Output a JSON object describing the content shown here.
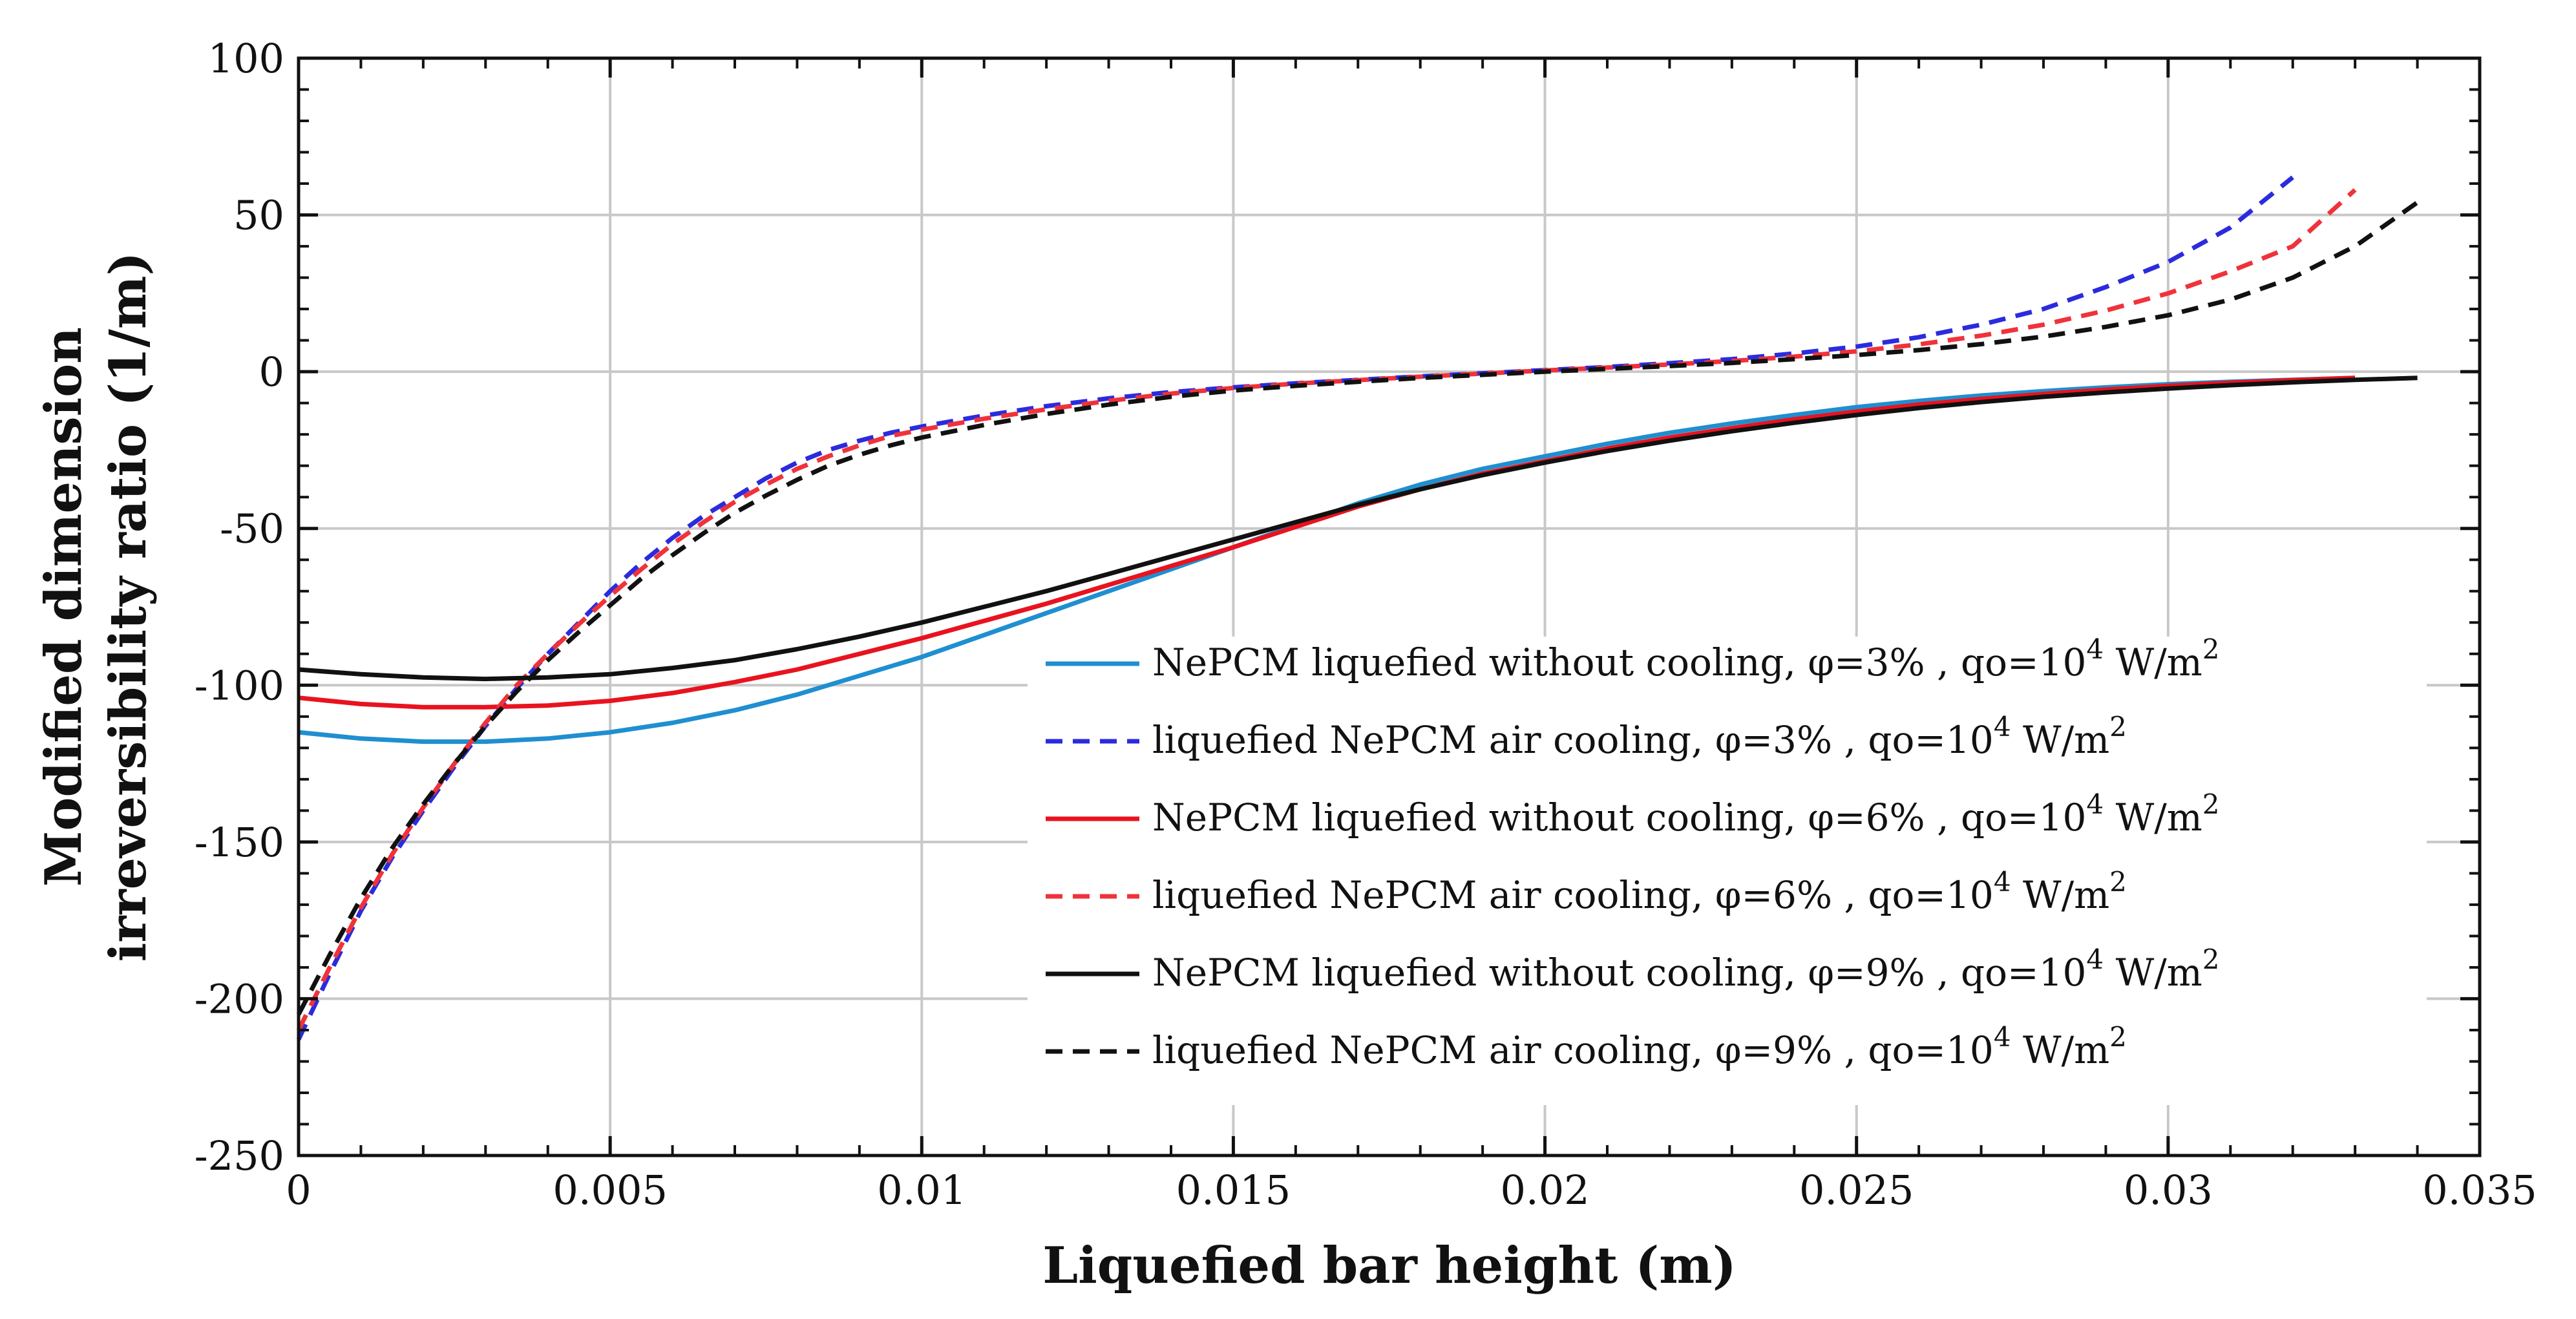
{
  "chart_data": {
    "type": "line",
    "title": "",
    "xlabel": "Liquefied bar height (m)",
    "ylabel_lines": [
      "Modified dimension",
      "irreversibility ratio  (1/m)"
    ],
    "xlim": [
      0,
      0.035
    ],
    "ylim": [
      -250,
      100
    ],
    "xticks": [
      0,
      0.005,
      0.01,
      0.015,
      0.02,
      0.025,
      0.03,
      0.035
    ],
    "xtick_labels": [
      "0",
      "0.005",
      "0.01",
      "0.015",
      "0.02",
      "0.025",
      "0.03",
      "0.035"
    ],
    "yticks": [
      -250,
      -200,
      -150,
      -100,
      -50,
      0,
      50,
      100
    ],
    "ytick_labels": [
      "-250",
      "-200",
      "-150",
      "-100",
      "-50",
      "0",
      "50",
      "100"
    ],
    "grid": true,
    "legend_position": "center-right",
    "series": [
      {
        "name": "NePCM liquefied without cooling, φ=3% , qo=10",
        "sup1": "4",
        "mid": " W/m",
        "sup2": "2",
        "color": "#1f8fd0",
        "dash": false,
        "x": [
          0,
          0.001,
          0.002,
          0.003,
          0.004,
          0.005,
          0.006,
          0.007,
          0.008,
          0.009,
          0.01,
          0.011,
          0.012,
          0.013,
          0.014,
          0.015,
          0.016,
          0.017,
          0.018,
          0.019,
          0.02,
          0.021,
          0.022,
          0.023,
          0.024,
          0.025,
          0.026,
          0.027,
          0.028,
          0.029,
          0.03,
          0.031,
          0.032,
          0.033
        ],
        "y": [
          -115,
          -117,
          -118,
          -118,
          -117,
          -115,
          -112,
          -108,
          -103,
          -97,
          -91,
          -84,
          -77,
          -70,
          -63,
          -56,
          -49,
          -42,
          -36,
          -31,
          -27,
          -23,
          -19.5,
          -16.5,
          -13.8,
          -11.3,
          -9.3,
          -7.6,
          -6.2,
          -5,
          -4,
          -3.2,
          -2.6,
          -2
        ]
      },
      {
        "name": "liquefied NePCM air cooling, φ=3% , qo=10",
        "sup1": "4",
        "mid": " W/m",
        "sup2": "2",
        "color": "#2b2bde",
        "dash": true,
        "x": [
          0,
          0.0005,
          0.001,
          0.0015,
          0.002,
          0.0025,
          0.003,
          0.0035,
          0.004,
          0.0045,
          0.005,
          0.0055,
          0.006,
          0.0065,
          0.007,
          0.0075,
          0.008,
          0.0085,
          0.009,
          0.0095,
          0.01,
          0.011,
          0.012,
          0.013,
          0.014,
          0.015,
          0.016,
          0.017,
          0.018,
          0.019,
          0.02,
          0.021,
          0.022,
          0.023,
          0.024,
          0.025,
          0.026,
          0.027,
          0.028,
          0.029,
          0.03,
          0.031,
          0.032
        ],
        "y": [
          -213,
          -192,
          -172,
          -155,
          -140,
          -126,
          -113,
          -101,
          -90,
          -80,
          -70,
          -61,
          -53,
          -46,
          -40,
          -34,
          -29,
          -25,
          -22,
          -19.5,
          -17.5,
          -14,
          -11,
          -8.5,
          -6.5,
          -5,
          -3.7,
          -2.6,
          -1.5,
          -0.5,
          0.5,
          1.5,
          2.7,
          4,
          5.8,
          8,
          11,
          15,
          20,
          27,
          35,
          46,
          62
        ]
      },
      {
        "name": "NePCM liquefied without cooling, φ=6% , qo=10",
        "sup1": "4",
        "mid": " W/m",
        "sup2": "2",
        "color": "#e8131f",
        "dash": false,
        "x": [
          0,
          0.001,
          0.002,
          0.003,
          0.004,
          0.005,
          0.006,
          0.007,
          0.008,
          0.009,
          0.01,
          0.011,
          0.012,
          0.013,
          0.014,
          0.015,
          0.016,
          0.017,
          0.018,
          0.019,
          0.02,
          0.021,
          0.022,
          0.023,
          0.024,
          0.025,
          0.026,
          0.027,
          0.028,
          0.029,
          0.03,
          0.031,
          0.032,
          0.033
        ],
        "y": [
          -104,
          -106,
          -107,
          -107,
          -106.5,
          -105,
          -102.5,
          -99,
          -95,
          -90,
          -85,
          -79.5,
          -74,
          -68,
          -62,
          -56,
          -49.5,
          -43,
          -37.5,
          -32.5,
          -28.5,
          -24.5,
          -21,
          -18,
          -15.2,
          -12.7,
          -10.5,
          -8.7,
          -7.1,
          -5.7,
          -4.5,
          -3.5,
          -2.7,
          -2
        ]
      },
      {
        "name": "liquefied NePCM air cooling, φ=6% , qo=10",
        "sup1": "4",
        "mid": " W/m",
        "sup2": "2",
        "color": "#f0323a",
        "dash": true,
        "x": [
          0,
          0.0005,
          0.001,
          0.0015,
          0.002,
          0.0025,
          0.003,
          0.0035,
          0.004,
          0.0045,
          0.005,
          0.0055,
          0.006,
          0.0065,
          0.007,
          0.0075,
          0.008,
          0.0085,
          0.009,
          0.0095,
          0.01,
          0.011,
          0.012,
          0.013,
          0.014,
          0.015,
          0.016,
          0.017,
          0.018,
          0.019,
          0.02,
          0.021,
          0.022,
          0.023,
          0.024,
          0.025,
          0.026,
          0.027,
          0.028,
          0.029,
          0.03,
          0.031,
          0.032,
          0.033
        ],
        "y": [
          -210,
          -190,
          -171,
          -154,
          -139,
          -125,
          -112,
          -100,
          -90,
          -80.5,
          -71.5,
          -63,
          -55,
          -48,
          -41.5,
          -36,
          -31,
          -27,
          -23.5,
          -20.5,
          -18.5,
          -15,
          -12,
          -9.3,
          -7,
          -5.2,
          -3.8,
          -2.7,
          -1.6,
          -0.6,
          0.4,
          1.3,
          2.3,
          3.4,
          4.8,
          6.5,
          8.7,
          11.5,
          15,
          19.5,
          25,
          32,
          40,
          58
        ]
      },
      {
        "name": "NePCM liquefied without cooling, φ=9% , qo=10",
        "sup1": "4",
        "mid": " W/m",
        "sup2": "2",
        "color": "#111111",
        "dash": false,
        "x": [
          0,
          0.001,
          0.002,
          0.003,
          0.004,
          0.005,
          0.006,
          0.007,
          0.008,
          0.009,
          0.01,
          0.011,
          0.012,
          0.013,
          0.014,
          0.015,
          0.016,
          0.017,
          0.018,
          0.019,
          0.02,
          0.021,
          0.022,
          0.023,
          0.024,
          0.025,
          0.026,
          0.027,
          0.028,
          0.029,
          0.03,
          0.031,
          0.032,
          0.033,
          0.034
        ],
        "y": [
          -95,
          -96.5,
          -97.5,
          -98,
          -97.5,
          -96.5,
          -94.5,
          -92,
          -88.5,
          -84.5,
          -80,
          -75,
          -70,
          -64.5,
          -59,
          -53.5,
          -48,
          -42.5,
          -37.5,
          -33,
          -29,
          -25.3,
          -22,
          -19,
          -16.3,
          -13.8,
          -11.6,
          -9.7,
          -8,
          -6.6,
          -5.4,
          -4.3,
          -3.4,
          -2.6,
          -2
        ]
      },
      {
        "name": "liquefied NePCM air cooling, φ=9% , qo=10",
        "sup1": "4",
        "mid": " W/m",
        "sup2": "2",
        "color": "#111111",
        "dash": true,
        "x": [
          0,
          0.0005,
          0.001,
          0.0015,
          0.002,
          0.0025,
          0.003,
          0.0035,
          0.004,
          0.0045,
          0.005,
          0.0055,
          0.006,
          0.0065,
          0.007,
          0.0075,
          0.008,
          0.0085,
          0.009,
          0.0095,
          0.01,
          0.011,
          0.012,
          0.013,
          0.014,
          0.015,
          0.016,
          0.017,
          0.018,
          0.019,
          0.02,
          0.021,
          0.022,
          0.023,
          0.024,
          0.025,
          0.026,
          0.027,
          0.028,
          0.029,
          0.03,
          0.031,
          0.032,
          0.033,
          0.034
        ],
        "y": [
          -205,
          -186,
          -168,
          -152,
          -138,
          -125,
          -113,
          -102,
          -92,
          -83,
          -74.5,
          -66,
          -58.5,
          -51.5,
          -45,
          -39.5,
          -34.5,
          -30,
          -26.5,
          -23.5,
          -21,
          -17,
          -13.5,
          -10.5,
          -8,
          -6,
          -4.5,
          -3.2,
          -2,
          -1,
          0,
          0.9,
          1.8,
          2.8,
          4,
          5.3,
          6.9,
          8.8,
          11.2,
          14.3,
          18,
          23,
          30,
          40,
          54
        ]
      }
    ]
  }
}
